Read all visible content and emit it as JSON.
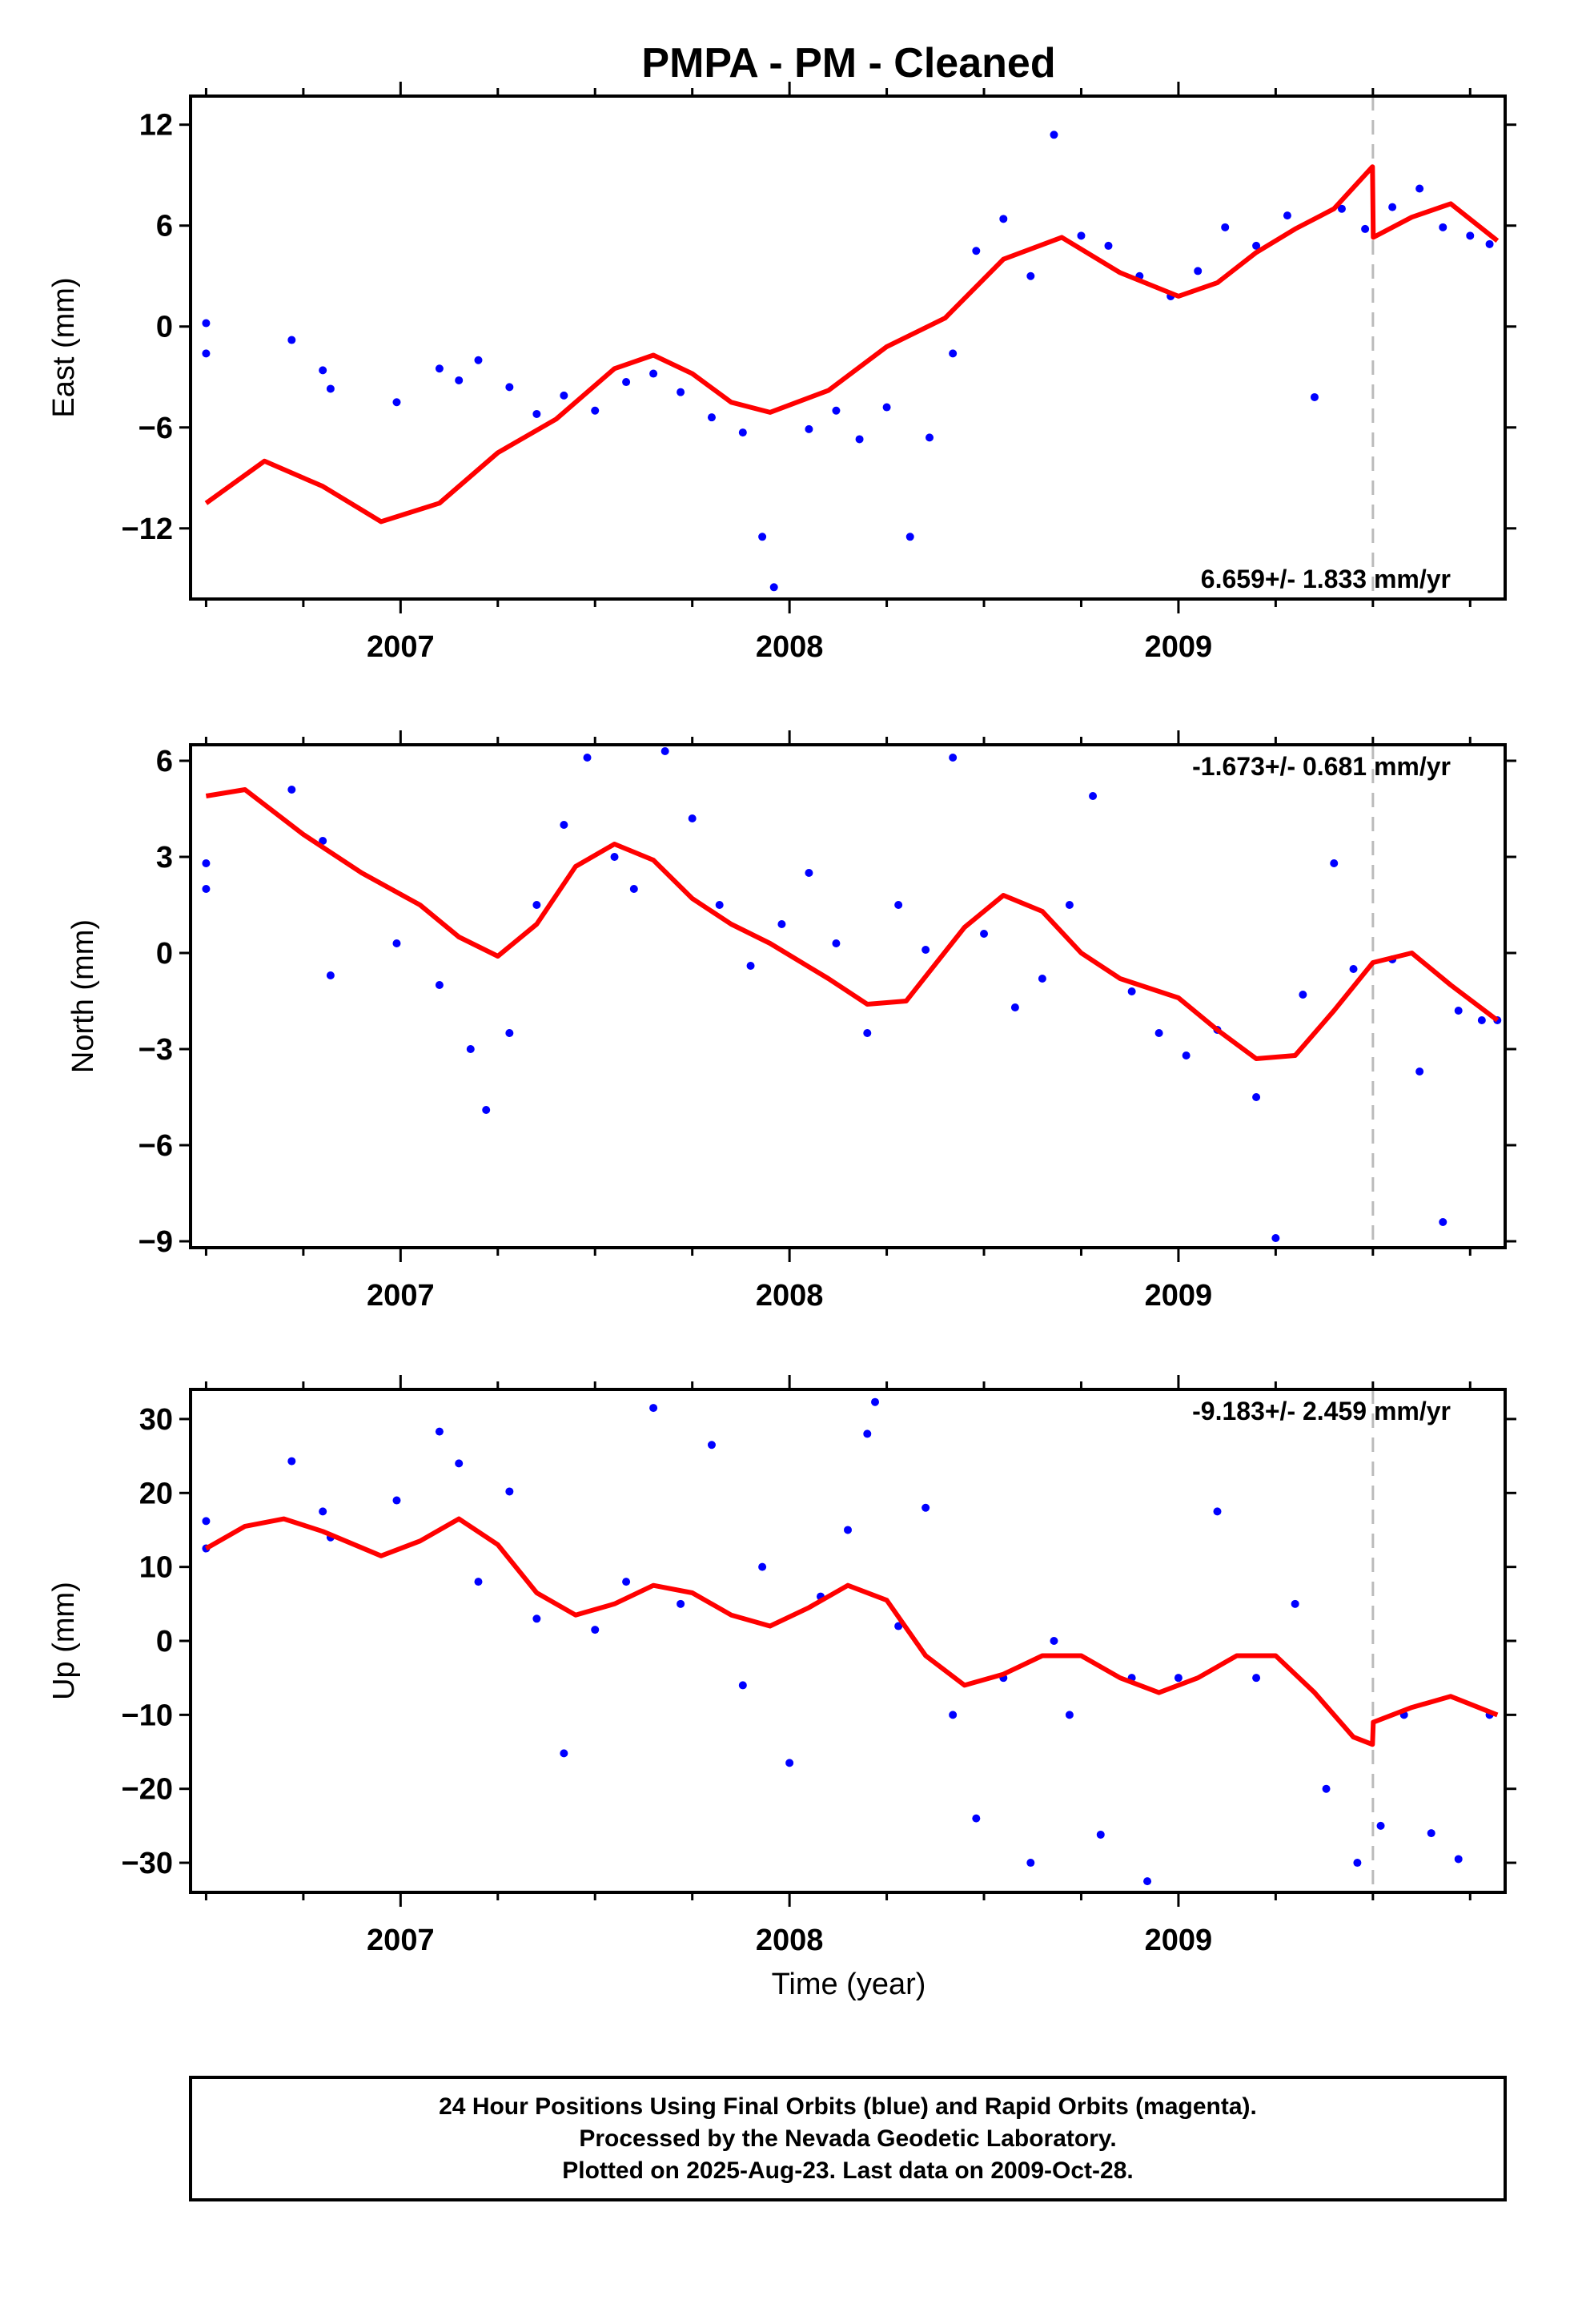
{
  "title": "PMPA  - PM - Cleaned",
  "x_axis_label": "Time (year)",
  "footer": {
    "line1": "24 Hour Positions Using Final Orbits (blue) and Rapid Orbits (magenta).",
    "line2": "Processed by the Nevada Geodetic Laboratory.",
    "line3": "Plotted on 2025-Aug-23. Last data on 2009-Oct-28."
  },
  "colors": {
    "points": "#0000ff",
    "model": "#ff0000",
    "break_line": "#bbbbbb",
    "frame": "#000000"
  },
  "chart_data": [
    {
      "type": "scatter",
      "panel": "east",
      "ylabel": "East (mm)",
      "rate_text": "6.659+/- 1.833 mm/yr",
      "xlim": [
        2006.46,
        2009.84
      ],
      "ylim": [
        -16.2,
        13.7
      ],
      "yticks": [
        12,
        6,
        0,
        -6,
        -12
      ],
      "xticks": [
        2007,
        2008,
        2009
      ],
      "equipment_change": 2009.5,
      "series": [
        {
          "kind": "points",
          "x": [
            2006.5,
            2006.5,
            2006.72,
            2006.8,
            2006.82,
            2006.99,
            2007.1,
            2007.15,
            2007.2,
            2007.28,
            2007.35,
            2007.42,
            2007.5,
            2007.58,
            2007.65,
            2007.72,
            2007.8,
            2007.88,
            2007.93,
            2007.96,
            2008.05,
            2008.12,
            2008.18,
            2008.25,
            2008.31,
            2008.36,
            2008.42,
            2008.48,
            2008.55,
            2008.62,
            2008.68,
            2008.75,
            2008.82,
            2008.9,
            2008.98,
            2009.05,
            2009.12,
            2009.2,
            2009.28,
            2009.35,
            2009.42,
            2009.48,
            2009.55,
            2009.62,
            2009.68,
            2009.75,
            2009.8
          ],
          "y": [
            0.2,
            -1.6,
            -0.8,
            -2.6,
            -3.7,
            -4.5,
            -2.5,
            -3.2,
            -2.0,
            -3.6,
            -5.2,
            -4.1,
            -5.0,
            -3.3,
            -2.8,
            -3.9,
            -5.4,
            -6.3,
            -12.5,
            -15.5,
            -6.1,
            -5.0,
            -6.7,
            -4.8,
            -12.5,
            -6.6,
            -1.6,
            4.5,
            6.4,
            3.0,
            11.4,
            5.4,
            4.8,
            3.0,
            1.8,
            3.3,
            5.9,
            4.8,
            6.6,
            -4.2,
            7.0,
            5.8,
            7.1,
            8.2,
            5.9,
            5.4,
            4.9
          ]
        },
        {
          "kind": "model",
          "x": [
            2006.5,
            2006.65,
            2006.8,
            2006.95,
            2007.1,
            2007.25,
            2007.4,
            2007.55,
            2007.65,
            2007.75,
            2007.85,
            2007.95,
            2008.1,
            2008.25,
            2008.4,
            2008.55,
            2008.7,
            2008.85,
            2009.0,
            2009.1,
            2009.2,
            2009.3,
            2009.4,
            2009.499,
            2009.501,
            2009.6,
            2009.7,
            2009.82
          ],
          "y": [
            -10.5,
            -8.0,
            -9.5,
            -11.6,
            -10.5,
            -7.5,
            -5.5,
            -2.5,
            -1.7,
            -2.8,
            -4.5,
            -5.1,
            -3.8,
            -1.2,
            0.5,
            4.0,
            5.3,
            3.2,
            1.8,
            2.6,
            4.4,
            5.8,
            7.0,
            9.5,
            5.3,
            6.5,
            7.3,
            5.1
          ]
        }
      ]
    },
    {
      "type": "scatter",
      "panel": "north",
      "ylabel": "North (mm)",
      "rate_text": "-1.673+/- 0.681 mm/yr",
      "xlim": [
        2006.46,
        2009.84
      ],
      "ylim": [
        -9.2,
        6.5
      ],
      "yticks": [
        6,
        3,
        0,
        -3,
        -6,
        -9
      ],
      "xticks": [
        2007,
        2008,
        2009
      ],
      "equipment_change": 2009.5,
      "series": [
        {
          "kind": "points",
          "x": [
            2006.5,
            2006.5,
            2006.72,
            2006.8,
            2006.82,
            2006.99,
            2007.1,
            2007.18,
            2007.22,
            2007.28,
            2007.35,
            2007.42,
            2007.48,
            2007.55,
            2007.6,
            2007.68,
            2007.75,
            2007.82,
            2007.9,
            2007.98,
            2008.05,
            2008.12,
            2008.2,
            2008.28,
            2008.35,
            2008.42,
            2008.5,
            2008.58,
            2008.65,
            2008.72,
            2008.78,
            2008.88,
            2008.95,
            2009.02,
            2009.1,
            2009.2,
            2009.25,
            2009.32,
            2009.4,
            2009.45,
            2009.55,
            2009.62,
            2009.68,
            2009.72,
            2009.78,
            2009.82
          ],
          "y": [
            2.8,
            2.0,
            5.1,
            3.5,
            -0.7,
            0.3,
            -1.0,
            -3.0,
            -4.9,
            -2.5,
            1.5,
            4.0,
            6.1,
            3.0,
            2.0,
            6.3,
            4.2,
            1.5,
            -0.4,
            0.9,
            2.5,
            0.3,
            -2.5,
            1.5,
            0.1,
            6.1,
            0.6,
            -1.7,
            -0.8,
            1.5,
            4.9,
            -1.2,
            -2.5,
            -3.2,
            -2.4,
            -4.5,
            -8.9,
            -1.3,
            2.8,
            -0.5,
            -0.2,
            -3.7,
            -8.4,
            -1.8,
            -2.1,
            -2.1
          ]
        },
        {
          "kind": "model",
          "x": [
            2006.5,
            2006.6,
            2006.75,
            2006.9,
            2007.05,
            2007.15,
            2007.25,
            2007.35,
            2007.45,
            2007.55,
            2007.65,
            2007.75,
            2007.85,
            2007.95,
            2008.1,
            2008.2,
            2008.3,
            2008.45,
            2008.55,
            2008.65,
            2008.75,
            2008.85,
            2009.0,
            2009.1,
            2009.2,
            2009.3,
            2009.4,
            2009.5,
            2009.6,
            2009.7,
            2009.82
          ],
          "y": [
            4.9,
            5.1,
            3.7,
            2.5,
            1.5,
            0.5,
            -0.1,
            0.9,
            2.7,
            3.4,
            2.9,
            1.7,
            0.9,
            0.3,
            -0.8,
            -1.6,
            -1.5,
            0.8,
            1.8,
            1.3,
            0.0,
            -0.8,
            -1.4,
            -2.4,
            -3.3,
            -3.2,
            -1.8,
            -0.3,
            0.0,
            -1.0,
            -2.1
          ]
        }
      ]
    },
    {
      "type": "scatter",
      "panel": "up",
      "ylabel": "Up (mm)",
      "rate_text": "-9.183+/- 2.459 mm/yr",
      "xlim": [
        2006.46,
        2009.84
      ],
      "ylim": [
        -34,
        34
      ],
      "yticks": [
        30,
        20,
        10,
        0,
        -10,
        -20,
        -30
      ],
      "xticks": [
        2007,
        2008,
        2009
      ],
      "equipment_change": 2009.5,
      "series": [
        {
          "kind": "points",
          "x": [
            2006.5,
            2006.5,
            2006.72,
            2006.8,
            2006.82,
            2006.99,
            2007.1,
            2007.15,
            2007.2,
            2007.28,
            2007.35,
            2007.42,
            2007.5,
            2007.58,
            2007.65,
            2007.72,
            2007.8,
            2007.88,
            2007.93,
            2008.0,
            2008.08,
            2008.15,
            2008.2,
            2008.22,
            2008.28,
            2008.35,
            2008.42,
            2008.48,
            2008.55,
            2008.62,
            2008.68,
            2008.72,
            2008.8,
            2008.88,
            2008.92,
            2009.0,
            2009.1,
            2009.2,
            2009.3,
            2009.38,
            2009.46,
            2009.52,
            2009.58,
            2009.65,
            2009.72,
            2009.8
          ],
          "y": [
            16.2,
            12.5,
            24.3,
            17.5,
            14.0,
            19.0,
            28.3,
            24.0,
            8.0,
            20.2,
            3.0,
            -15.2,
            1.5,
            8.0,
            31.5,
            5.0,
            26.5,
            -6.0,
            10.0,
            -16.5,
            6.0,
            15.0,
            28.0,
            32.3,
            2.0,
            18.0,
            -10.0,
            -24.0,
            -5.0,
            -30.0,
            0.0,
            -10.0,
            -26.2,
            -5.0,
            -32.5,
            -5.0,
            17.5,
            -5.0,
            5.0,
            -20.0,
            -30.0,
            -25.0,
            -10.0,
            -26.0,
            -29.5,
            -10.0
          ]
        },
        {
          "kind": "model",
          "x": [
            2006.5,
            2006.6,
            2006.7,
            2006.8,
            2006.95,
            2007.05,
            2007.15,
            2007.25,
            2007.35,
            2007.45,
            2007.55,
            2007.65,
            2007.75,
            2007.85,
            2007.95,
            2008.05,
            2008.15,
            2008.25,
            2008.35,
            2008.45,
            2008.55,
            2008.65,
            2008.75,
            2008.85,
            2008.95,
            2009.05,
            2009.15,
            2009.25,
            2009.35,
            2009.45,
            2009.499,
            2009.501,
            2009.6,
            2009.7,
            2009.82
          ],
          "y": [
            12.5,
            15.5,
            16.5,
            14.8,
            11.5,
            13.5,
            16.5,
            13.0,
            6.5,
            3.5,
            5.0,
            7.5,
            6.5,
            3.5,
            2.0,
            4.5,
            7.5,
            5.5,
            -2.0,
            -6.0,
            -4.5,
            -2.0,
            -2.0,
            -5.0,
            -7.0,
            -5.0,
            -2.0,
            -2.0,
            -7.0,
            -13.0,
            -14.0,
            -11.0,
            -9.0,
            -7.5,
            -10.0
          ]
        }
      ]
    }
  ]
}
